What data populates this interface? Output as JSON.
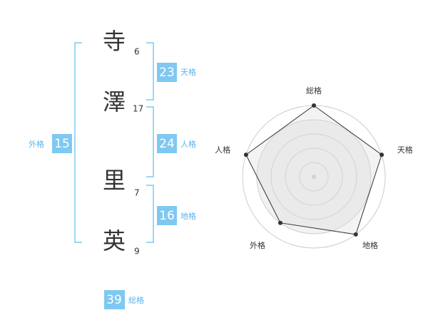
{
  "name": {
    "characters": [
      {
        "char": "寺",
        "strokes": 6
      },
      {
        "char": "澤",
        "strokes": 17
      },
      {
        "char": "里",
        "strokes": 7
      },
      {
        "char": "英",
        "strokes": 9
      }
    ]
  },
  "scores": {
    "tenkaku": {
      "label": "天格",
      "value": 23
    },
    "jinkaku": {
      "label": "人格",
      "value": 24
    },
    "chikaku": {
      "label": "地格",
      "value": 16
    },
    "gaikaku": {
      "label": "外格",
      "value": 15
    },
    "soukaku": {
      "label": "総格",
      "value": 39
    }
  },
  "radar": {
    "labels": [
      "総格",
      "天格",
      "地格",
      "外格",
      "人格"
    ],
    "values": [
      5,
      5,
      5,
      4,
      5
    ],
    "max": 5
  }
}
